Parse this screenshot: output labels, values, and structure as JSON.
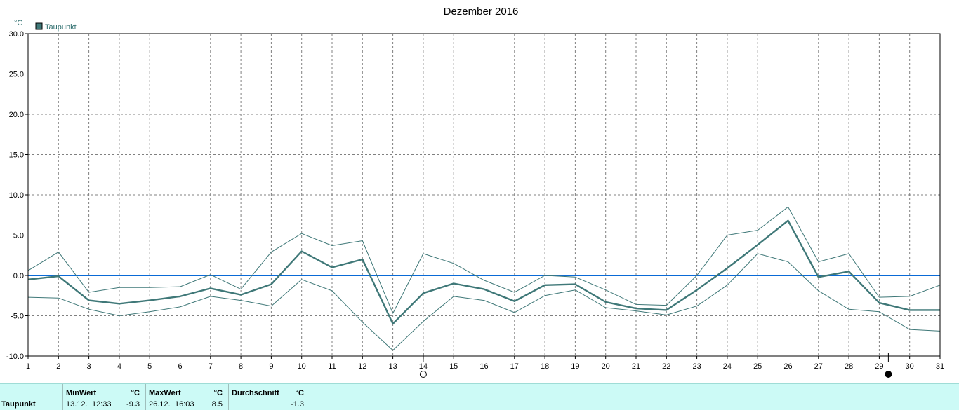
{
  "chart_data": {
    "type": "line",
    "title": "Dezember 2016",
    "ylabel": "°C",
    "xlabel": "",
    "x": [
      1,
      2,
      3,
      4,
      5,
      6,
      7,
      8,
      9,
      10,
      11,
      12,
      13,
      14,
      15,
      16,
      17,
      18,
      19,
      20,
      21,
      22,
      23,
      24,
      25,
      26,
      27,
      28,
      29,
      30,
      31
    ],
    "xlim": [
      1,
      31
    ],
    "ylim": [
      -10,
      30
    ],
    "yticks": [
      "30.0",
      "25.0",
      "20.0",
      "15.0",
      "10.0",
      "5.0",
      "0.0",
      "-5.0",
      "-10.0"
    ],
    "grid": true,
    "legend": "top-left",
    "zero_line": 0,
    "series": [
      {
        "name": "Taupunkt",
        "role": "mean",
        "values": [
          -0.5,
          -0.1,
          -3.1,
          -3.5,
          -3.1,
          -2.6,
          -1.6,
          -2.4,
          -1.1,
          3.0,
          1.0,
          2.0,
          -6.0,
          -2.2,
          -1.0,
          -1.7,
          -3.2,
          -1.2,
          -1.1,
          -3.3,
          -4.1,
          -4.3,
          -1.8,
          0.9,
          3.8,
          6.8,
          -0.2,
          0.5,
          -3.4,
          -4.3,
          -4.3
        ]
      },
      {
        "role": "max",
        "values": [
          0.6,
          2.9,
          -2.1,
          -1.5,
          -1.5,
          -1.4,
          0.1,
          -1.7,
          2.9,
          5.2,
          3.7,
          4.3,
          -4.7,
          2.7,
          1.5,
          -0.6,
          -2.1,
          0.0,
          -0.2,
          -1.8,
          -3.6,
          -3.7,
          0.0,
          5.0,
          5.6,
          8.5,
          1.7,
          2.7,
          -2.7,
          -2.6,
          -1.2
        ]
      },
      {
        "role": "min",
        "values": [
          -2.7,
          -2.8,
          -4.2,
          -5.0,
          -4.5,
          -3.9,
          -2.6,
          -3.1,
          -3.8,
          -0.5,
          -1.9,
          -5.8,
          -9.3,
          -5.7,
          -2.6,
          -3.1,
          -4.6,
          -2.5,
          -1.8,
          -4.0,
          -4.4,
          -4.9,
          -3.8,
          -1.2,
          2.7,
          1.7,
          -1.9,
          -4.2,
          -4.5,
          -6.7,
          -6.9
        ]
      }
    ],
    "moon_phases": [
      {
        "day": 14,
        "phase": "full-moon"
      },
      {
        "day": 29.3,
        "phase": "new-moon"
      }
    ]
  },
  "colors": {
    "series": "#3f7878",
    "zero_line": "#0a6ad6",
    "grid": "#808080",
    "stats_bg": "#ccfaf6"
  },
  "stats": {
    "row_label": "Taupunkt",
    "min": {
      "label": "MinWert",
      "unit": "°C",
      "date": "13.12.",
      "time": "12:33",
      "value": "-9.3"
    },
    "max": {
      "label": "MaxWert",
      "unit": "°C",
      "date": "26.12.",
      "time": "16:03",
      "value": "8.5"
    },
    "avg": {
      "label": "Durchschnitt",
      "unit": "°C",
      "value": "-1.3"
    }
  }
}
